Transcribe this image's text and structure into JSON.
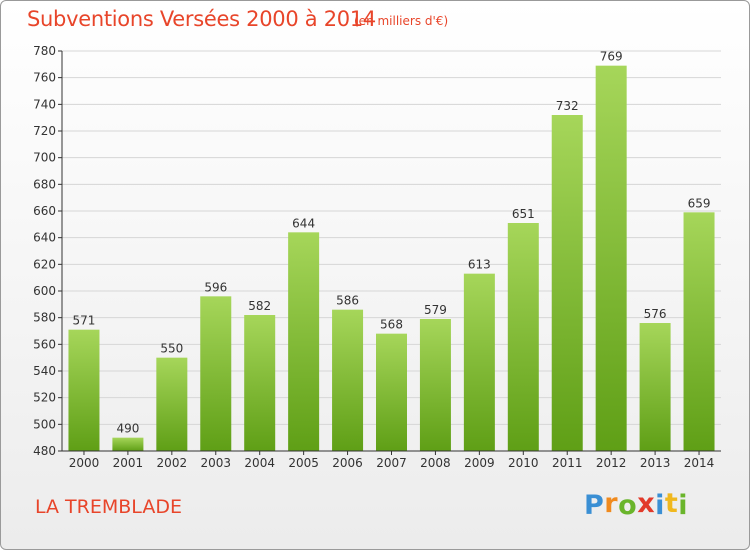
{
  "header": {
    "title": "Subventions Versées 2000 à 2014",
    "unit": "(en milliers d'€)"
  },
  "footer": {
    "place": "LA TREMBLADE",
    "brand_letters": [
      "P",
      "r",
      "o",
      "x",
      "i",
      "t",
      "i"
    ],
    "brand_colors": [
      "#3a8fd4",
      "#f08a1e",
      "#6ab52b",
      "#e23a2a",
      "#3a8fd4",
      "#f0b81e",
      "#6ab52b"
    ]
  },
  "colors": {
    "bar_light": "#a6d65a",
    "bar_dark": "#5f9f16",
    "grid": "#d6d6d6",
    "axis": "#333333",
    "text": "#333333",
    "accent": "#e8452a"
  },
  "chart_data": {
    "type": "bar",
    "title": "Subventions Versées 2000 à 2014",
    "subtitle": "(en milliers d'€)",
    "categories": [
      "2000",
      "2001",
      "2002",
      "2003",
      "2004",
      "2005",
      "2006",
      "2007",
      "2008",
      "2009",
      "2010",
      "2011",
      "2012",
      "2013",
      "2014"
    ],
    "values": [
      571,
      490,
      550,
      596,
      582,
      644,
      586,
      568,
      579,
      613,
      651,
      732,
      769,
      576,
      659
    ],
    "ylim": [
      480,
      780
    ],
    "yticks": [
      480,
      500,
      520,
      540,
      560,
      580,
      600,
      620,
      640,
      660,
      680,
      700,
      720,
      740,
      760,
      780
    ],
    "grid": true,
    "data_labels": true
  }
}
